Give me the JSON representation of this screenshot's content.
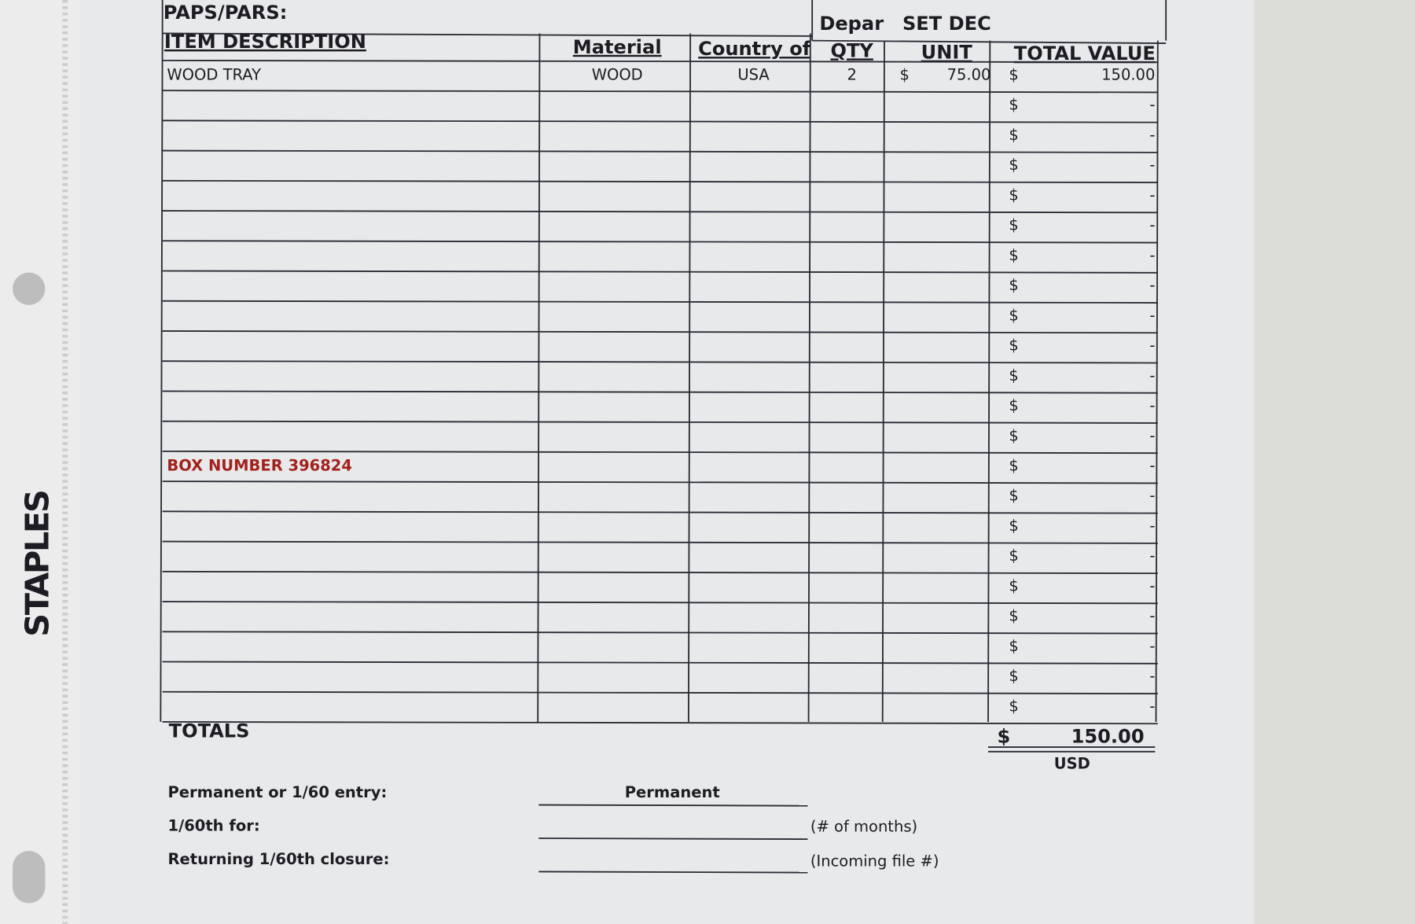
{
  "binder": {
    "brand": "STAPLES"
  },
  "form": {
    "title": "PAPS/PARS:",
    "department_label": "Depar",
    "department_value": "SET DEC",
    "columns": {
      "description": "ITEM DESCRIPTION",
      "material": "Material",
      "country": "Country of",
      "qty": "QTY",
      "unit": "UNIT",
      "total": "TOTAL VALUE"
    },
    "rows": [
      {
        "description": "WOOD TRAY",
        "material": "WOOD",
        "country": "USA",
        "qty": "2",
        "unit_currency": "$",
        "unit": "75.00",
        "total_currency": "$",
        "total": "150.00"
      },
      {
        "total_currency": "$",
        "total": "-"
      },
      {
        "total_currency": "$",
        "total": "-"
      },
      {
        "total_currency": "$",
        "total": "-"
      },
      {
        "total_currency": "$",
        "total": "-"
      },
      {
        "total_currency": "$",
        "total": "-"
      },
      {
        "total_currency": "$",
        "total": "-"
      },
      {
        "total_currency": "$",
        "total": "-"
      },
      {
        "total_currency": "$",
        "total": "-"
      },
      {
        "total_currency": "$",
        "total": "-"
      },
      {
        "total_currency": "$",
        "total": "-"
      },
      {
        "total_currency": "$",
        "total": "-"
      },
      {
        "total_currency": "$",
        "total": "-"
      },
      {
        "description": "BOX NUMBER 396824",
        "total_currency": "$",
        "total": "-"
      },
      {
        "total_currency": "$",
        "total": "-"
      },
      {
        "total_currency": "$",
        "total": "-"
      },
      {
        "total_currency": "$",
        "total": "-"
      },
      {
        "total_currency": "$",
        "total": "-"
      },
      {
        "total_currency": "$",
        "total": "-"
      },
      {
        "total_currency": "$",
        "total": "-"
      },
      {
        "total_currency": "$",
        "total": "-"
      },
      {
        "total_currency": "$",
        "total": "-"
      }
    ],
    "totals": {
      "label": "TOTALS",
      "currency": "$",
      "value": "150.00",
      "unit": "USD"
    },
    "footer": {
      "entry_label": "Permanent or 1/60 entry:",
      "entry_value": "Permanent",
      "months_label": "1/60th for:",
      "months_hint": "(# of months)",
      "closure_label": "Returning 1/60th closure:",
      "closure_hint": "(Incoming file #)"
    }
  }
}
